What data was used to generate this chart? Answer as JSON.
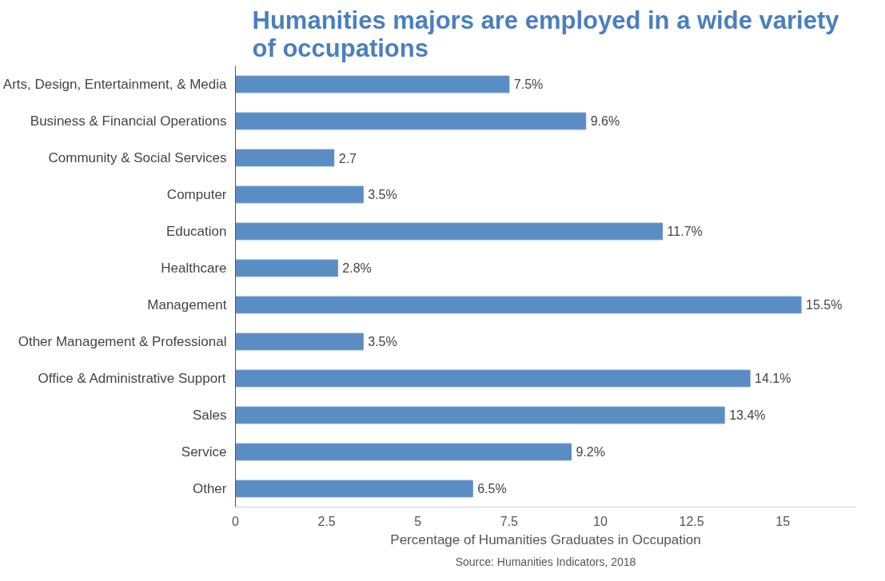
{
  "chart_data": {
    "type": "bar",
    "orientation": "horizontal",
    "title": "Humanities majors are employed in a wide variety of occupations",
    "categories": [
      "Arts, Design, Entertainment, & Media",
      "Business & Financial Operations",
      "Community & Social Services",
      "Computer",
      "Education",
      "Healthcare",
      "Management",
      "Other Management & Professional",
      "Office & Administrative Support",
      "Sales",
      "Service",
      "Other"
    ],
    "values": [
      7.5,
      9.6,
      2.7,
      3.5,
      11.7,
      2.8,
      15.5,
      3.5,
      14.1,
      13.4,
      9.2,
      6.5
    ],
    "value_labels": [
      "7.5%",
      "9.6%",
      "2.7",
      "3.5%",
      "11.7%",
      "2.8%",
      "15.5%",
      "3.5%",
      "14.1%",
      "13.4%",
      "9.2%",
      "6.5%"
    ],
    "color": "#5b8dc5",
    "xlim": [
      0,
      17
    ],
    "xticks": [
      0,
      2.5,
      5,
      7.5,
      10,
      12.5,
      15
    ],
    "xlabel": "Percentage of Humanities Graduates in Occupation",
    "annotations": [
      "Source: Humanities Indicators, 2018"
    ],
    "grid": false
  }
}
